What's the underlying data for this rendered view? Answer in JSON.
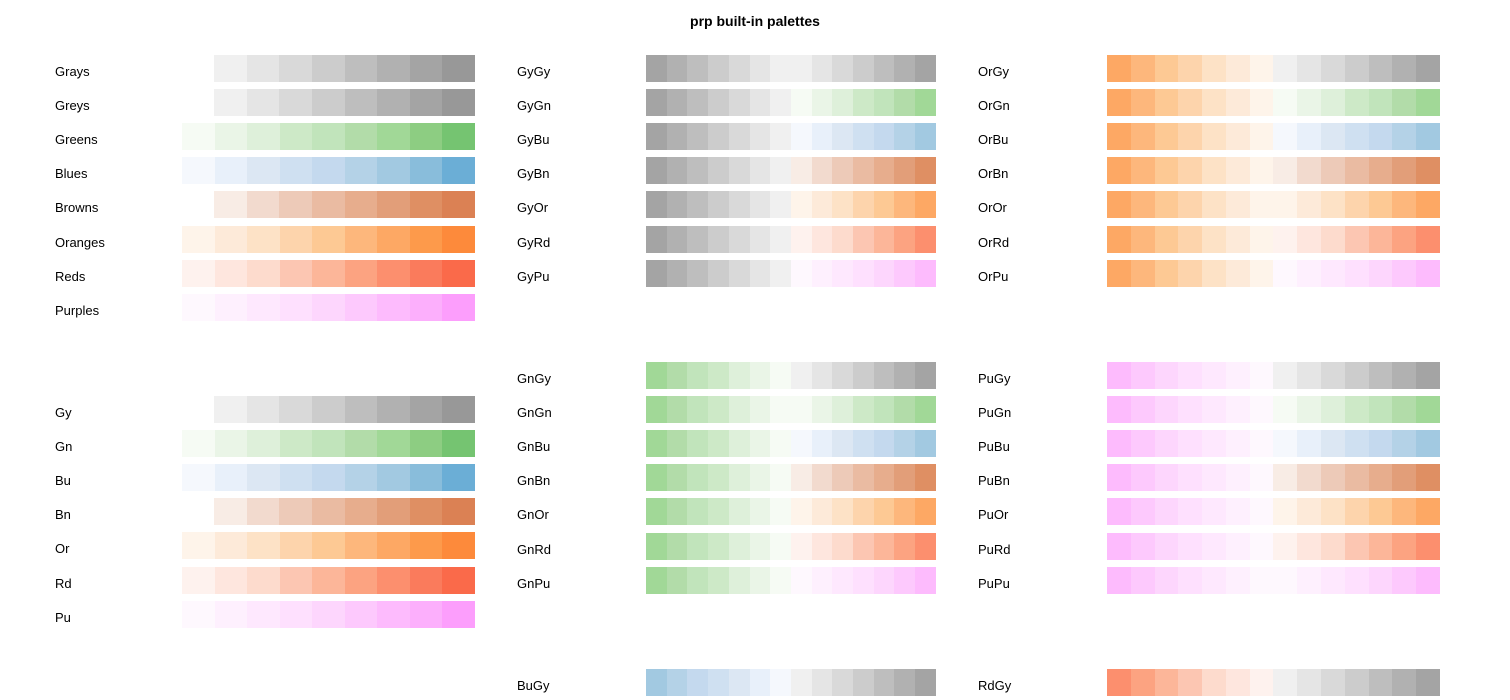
{
  "title": "prp built-in palettes",
  "chart_data": {
    "type": "table",
    "title": "prp built-in palettes",
    "colors": {
      "gray": [
        "#F0F0F0",
        "#E5E5E5",
        "#D9D9D9",
        "#CCCCCC",
        "#BEBEBE",
        "#B1B1B1",
        "#A4A4A4",
        "#989898"
      ],
      "green": [
        "#F6FBF4",
        "#EAF5E7",
        "#DEF0DA",
        "#CDE9C7",
        "#C1E4BB",
        "#B2DCA9",
        "#A1D897",
        "#8DCD82",
        "#75C471"
      ],
      "blue": [
        "#F5F8FD",
        "#E8F0FA",
        "#DCE7F3",
        "#CFE0F1",
        "#C4D9EE",
        "#B4D2E7",
        "#A2C9E1",
        "#89BDDB",
        "#6BAED6"
      ],
      "brown": [
        "#F8ECE5",
        "#F2DACE",
        "#EDCAB8",
        "#EABBA2",
        "#E7AD8D",
        "#E29E79",
        "#DF8F63",
        "#DB8154"
      ],
      "orange": [
        "#FEF4EA",
        "#FDEAD9",
        "#FDE2C6",
        "#FDD4AC",
        "#FDC994",
        "#FDB77C",
        "#FDA864",
        "#FD9A4B",
        "#FD8A3B"
      ],
      "red": [
        "#FEF2EE",
        "#FEE6DE",
        "#FDDBCD",
        "#FCC6B2",
        "#FCB699",
        "#FCA381",
        "#FC8F6E",
        "#FA7B5C",
        "#FA6A4A"
      ],
      "purple": [
        "#FEF8FE",
        "#FEF0FE",
        "#FEE8FE",
        "#FEE0FE",
        "#FDD6FD",
        "#FDC9FD",
        "#FDBBFD",
        "#FCAFFC",
        "#FC9EFC"
      ]
    },
    "palettes": [
      {
        "name": "Grays"
      },
      {
        "name": "Greys"
      },
      {
        "name": "Greens"
      },
      {
        "name": "Blues"
      },
      {
        "name": "Browns"
      },
      {
        "name": "Oranges"
      },
      {
        "name": "Reds"
      },
      {
        "name": "Purples"
      },
      {
        "name": "Gy"
      },
      {
        "name": "Gn"
      },
      {
        "name": "Bu"
      },
      {
        "name": "Bn"
      },
      {
        "name": "Or"
      },
      {
        "name": "Rd"
      },
      {
        "name": "Pu"
      },
      {
        "name": "GyGy"
      },
      {
        "name": "GyGn"
      },
      {
        "name": "GyBu"
      },
      {
        "name": "GyBn"
      },
      {
        "name": "GyOr"
      },
      {
        "name": "GyRd"
      },
      {
        "name": "GyPu"
      },
      {
        "name": "GnGy"
      },
      {
        "name": "GnGn"
      },
      {
        "name": "GnBu"
      },
      {
        "name": "GnBn"
      },
      {
        "name": "GnOr"
      },
      {
        "name": "GnRd"
      },
      {
        "name": "GnPu"
      },
      {
        "name": "BuGy"
      },
      {
        "name": "OrGy"
      },
      {
        "name": "OrGn"
      },
      {
        "name": "OrBu"
      },
      {
        "name": "OrBn"
      },
      {
        "name": "OrOr"
      },
      {
        "name": "OrRd"
      },
      {
        "name": "OrPu"
      },
      {
        "name": "PuGy"
      },
      {
        "name": "PuGn"
      },
      {
        "name": "PuBu"
      },
      {
        "name": "PuBn"
      },
      {
        "name": "PuOr"
      },
      {
        "name": "PuRd"
      },
      {
        "name": "PuPu"
      },
      {
        "name": "RdGy"
      }
    ]
  }
}
